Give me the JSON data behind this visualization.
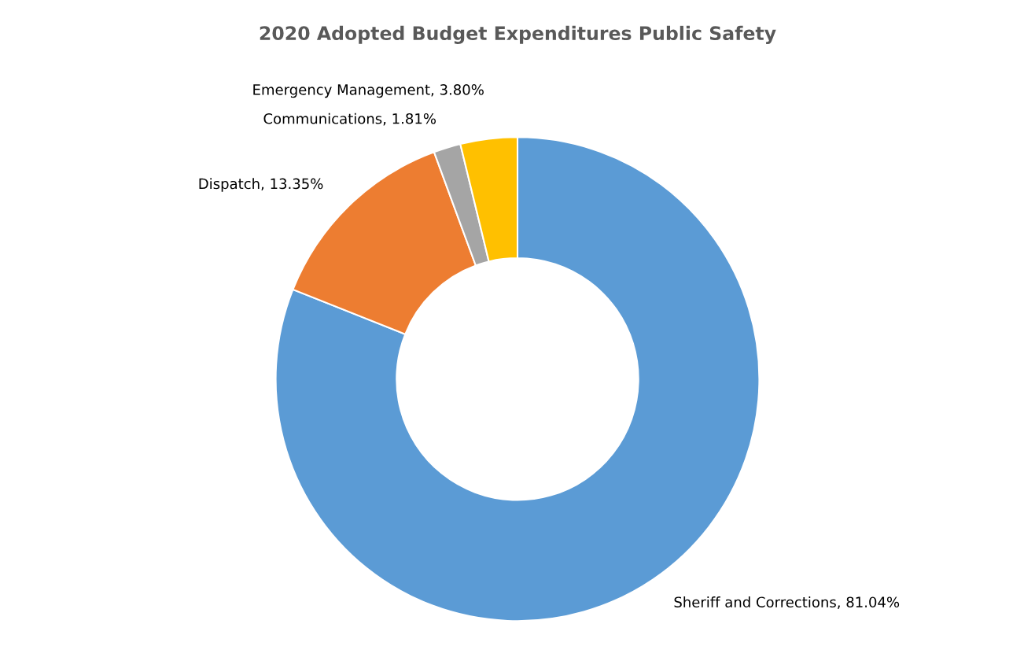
{
  "chart_data": {
    "type": "donut",
    "title": "2020 Adopted Budget Expenditures Public Safety",
    "categories": [
      "Sheriff and Corrections",
      "Dispatch",
      "Communications",
      "Emergency Management"
    ],
    "values": [
      81.04,
      13.35,
      1.81,
      3.8
    ],
    "value_labels": [
      "81.04%",
      "13.35%",
      "1.81%",
      "3.80%"
    ],
    "colors": [
      "#5b9bd5",
      "#ed7d31",
      "#a5a5a5",
      "#ffc000"
    ]
  }
}
